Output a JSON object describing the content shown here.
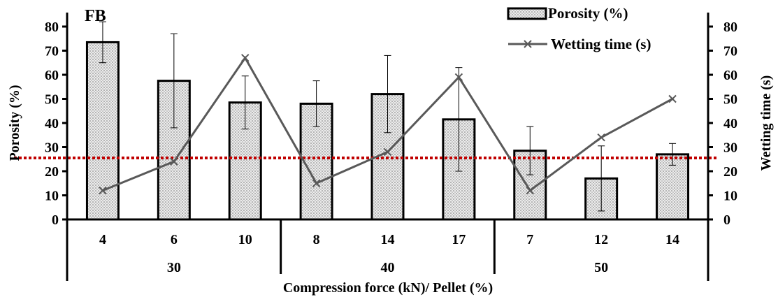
{
  "chart_data": {
    "type": "bar",
    "panel_label": "FB",
    "categories": [
      "4",
      "6",
      "10",
      "8",
      "14",
      "17",
      "7",
      "12",
      "14"
    ],
    "groups": [
      {
        "label": "30",
        "count": 3
      },
      {
        "label": "40",
        "count": 3
      },
      {
        "label": "50",
        "count": 3
      }
    ],
    "series": [
      {
        "name": "Porosity (%)",
        "type": "bar",
        "axis": "left",
        "values": [
          73.5,
          57.5,
          48.5,
          48.0,
          52.0,
          41.5,
          28.5,
          17.0,
          27.0
        ],
        "error": [
          8.5,
          19.5,
          11.0,
          9.5,
          16.0,
          21.5,
          10.0,
          13.5,
          4.5
        ]
      },
      {
        "name": "Wetting time (s)",
        "type": "line",
        "axis": "right",
        "values": [
          12,
          24,
          67,
          15,
          28,
          59,
          12,
          34,
          50
        ]
      }
    ],
    "reference_line": {
      "y": 25.5,
      "axis": "left",
      "color": "#c00000",
      "style": "dotted"
    },
    "left_axis": {
      "label": "Porosity (%)",
      "ylim": [
        0,
        80
      ],
      "ticks": [
        0,
        10,
        20,
        30,
        40,
        50,
        60,
        70,
        80
      ]
    },
    "right_axis": {
      "label": "Wetting time (s)",
      "ylim": [
        0,
        80
      ],
      "ticks": [
        0,
        10,
        20,
        30,
        40,
        50,
        60,
        70,
        80
      ]
    },
    "xlabel": "Compression force (kN)/ Pellet (%)",
    "grid": false,
    "legend_position": "top-right",
    "colors": {
      "bar_fill": "#e6e6e6",
      "bar_border": "#000000",
      "line": "#595959"
    }
  }
}
